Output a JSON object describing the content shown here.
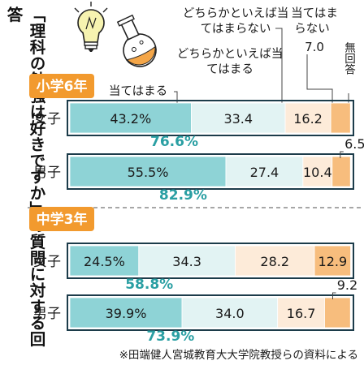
{
  "title": "「理科の勉強は好きですか」の質問に対する回答",
  "source_note": "※田端健人宮城教育大大学院教授らの資料による",
  "legend": {
    "agree": "当てはまる",
    "somewhat_agree": "どちらかといえば当てはまる",
    "somewhat_disagree": "どちらかといえば当てはまらない",
    "disagree": "当てはまらない",
    "no_answer": "無回答",
    "disagree_value": "7.0"
  },
  "colors": {
    "agree": "#8ed3d6",
    "somewhat_agree": "#e2f3f3",
    "somewhat_disagree": "#fdebd9",
    "disagree": "#f7bd7d",
    "no_answer": "#fcdcbb",
    "accent": "#2a9fa3",
    "badge": "#f29a2e",
    "frame": "#1c3c4a"
  },
  "chart_data": {
    "type": "bar",
    "stacked": true,
    "orientation": "horizontal",
    "title": "「理科の勉強は好きですか」の質問に対する回答",
    "series_names": [
      "当てはまる",
      "どちらかといえば当てはまる",
      "どちらかといえば当てはまらない",
      "当てはまらない",
      "無回答"
    ],
    "groups": [
      {
        "name": "小学6年",
        "rows": [
          {
            "label": "女子",
            "values": [
              43.2,
              33.4,
              16.2,
              7.0,
              0.2
            ],
            "labels": [
              "43.2%",
              "33.4",
              "16.2",
              "",
              ""
            ],
            "total_label": "76.6%"
          },
          {
            "label": "男子",
            "values": [
              55.5,
              27.4,
              10.4,
              6.5,
              0.2
            ],
            "labels": [
              "55.5%",
              "27.4",
              "10.4",
              "",
              ""
            ],
            "total_label": "82.9%",
            "side_label": "6.5"
          }
        ]
      },
      {
        "name": "中学3年",
        "rows": [
          {
            "label": "女子",
            "values": [
              24.5,
              34.3,
              28.2,
              12.9,
              0.1
            ],
            "labels": [
              "24.5%",
              "34.3",
              "28.2",
              "12.9",
              ""
            ],
            "total_label": "58.8%"
          },
          {
            "label": "男子",
            "values": [
              39.9,
              34.0,
              16.7,
              9.2,
              0.2
            ],
            "labels": [
              "39.9%",
              "34.0",
              "16.7",
              "",
              ""
            ],
            "total_label": "73.9%",
            "side_label": "9.2"
          }
        ]
      }
    ],
    "xlim": [
      0,
      100
    ]
  }
}
